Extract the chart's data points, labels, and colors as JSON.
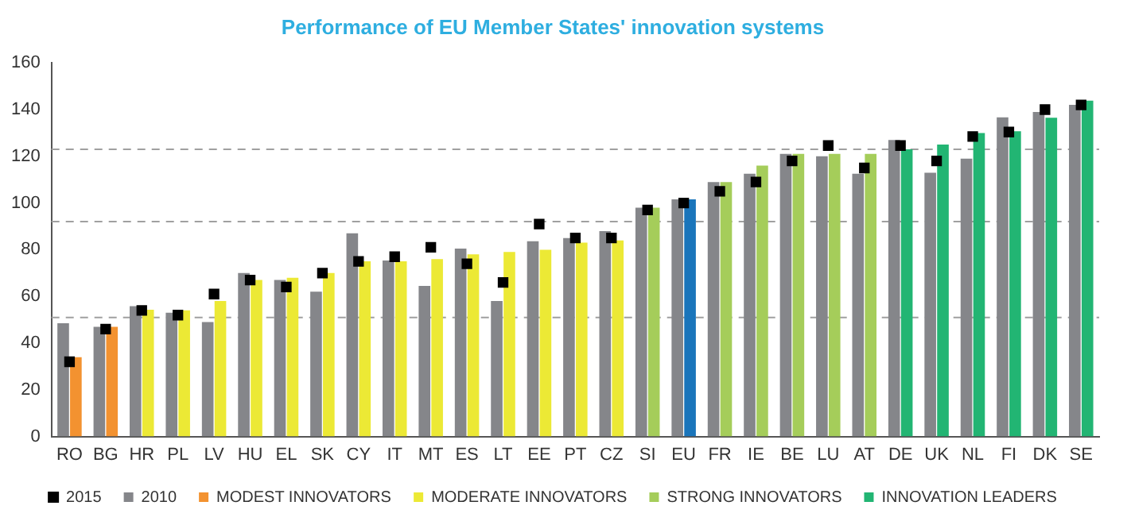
{
  "chart_data": {
    "type": "bar",
    "title": "Performance of EU Member States' innovation systems",
    "categories": [
      "RO",
      "BG",
      "HR",
      "PL",
      "LV",
      "HU",
      "EL",
      "SK",
      "CY",
      "IT",
      "MT",
      "ES",
      "LT",
      "EE",
      "PT",
      "CZ",
      "SI",
      "EU",
      "FR",
      "IE",
      "BE",
      "LU",
      "AT",
      "DE",
      "UK",
      "NL",
      "FI",
      "DK",
      "SE"
    ],
    "series": [
      {
        "name": "2010",
        "color": "#85868a",
        "values": [
          48.5,
          47,
          55.8,
          53,
          49,
          70,
          67,
          62,
          87,
          75.4,
          64.5,
          80.5,
          58,
          83.6,
          85,
          88,
          98,
          101.6,
          109,
          112.5,
          121,
          120,
          112.5,
          127,
          113,
          119,
          136.7,
          139,
          142
        ]
      },
      {
        "name": "MODEST INNOVATORS",
        "color": "#f39230",
        "values": [
          34,
          47,
          null,
          null,
          null,
          null,
          null,
          null,
          null,
          null,
          null,
          null,
          null,
          null,
          null,
          null,
          null,
          null,
          null,
          null,
          null,
          null,
          null,
          null,
          null,
          null,
          null,
          null,
          null
        ]
      },
      {
        "name": "MODERATE INNOVATORS",
        "color": "#ece935",
        "values": [
          null,
          null,
          54.3,
          54,
          58,
          67,
          68,
          70,
          75,
          75,
          76,
          78,
          79,
          80,
          83,
          84,
          null,
          null,
          null,
          null,
          null,
          null,
          null,
          null,
          null,
          null,
          null,
          null,
          null
        ]
      },
      {
        "name": "STRONG INNOVATORS",
        "color": "#a5cd5a",
        "values": [
          null,
          null,
          null,
          null,
          null,
          null,
          null,
          null,
          null,
          null,
          null,
          null,
          null,
          null,
          null,
          null,
          98,
          null,
          109,
          116,
          121,
          121,
          121,
          null,
          null,
          null,
          null,
          null,
          null
        ]
      },
      {
        "name": "INNOVATION LEADERS",
        "color": "#22b573",
        "values": [
          null,
          null,
          null,
          null,
          null,
          null,
          null,
          null,
          null,
          null,
          null,
          null,
          null,
          null,
          null,
          null,
          null,
          null,
          null,
          null,
          null,
          null,
          null,
          123,
          125,
          130,
          130.7,
          136.5,
          143.8
        ]
      },
      {
        "color": "#1a75bb",
        "values": [
          null,
          null,
          null,
          null,
          null,
          null,
          null,
          null,
          null,
          null,
          null,
          null,
          null,
          null,
          null,
          null,
          null,
          101.6,
          null,
          null,
          null,
          null,
          null,
          null,
          null,
          null,
          null,
          null,
          null
        ]
      },
      {
        "name": "2015",
        "type": "scatter",
        "marker": "square",
        "color": "#000000",
        "values": [
          32,
          46,
          54,
          52,
          61,
          67,
          64,
          70,
          75,
          77,
          81,
          74,
          66,
          91,
          85,
          85,
          97,
          100,
          105,
          109,
          118,
          124.6,
          115,
          124.6,
          118,
          128.5,
          130.4,
          140,
          142
        ]
      }
    ],
    "ylim": [
      0,
      160
    ],
    "yticks": [
      0,
      20,
      40,
      60,
      80,
      100,
      120,
      140,
      160
    ],
    "grid": false,
    "legend": "bottom",
    "ref_lines": [
      {
        "axis": "y",
        "value": 51,
        "color": "#a0a0a0",
        "line_style": "dashed"
      },
      {
        "axis": "y",
        "value": 92,
        "color": "#a0a0a0",
        "line_style": "dashed"
      },
      {
        "axis": "y",
        "value": 123,
        "color": "#a0a0a0",
        "line_style": "dashed"
      }
    ]
  }
}
